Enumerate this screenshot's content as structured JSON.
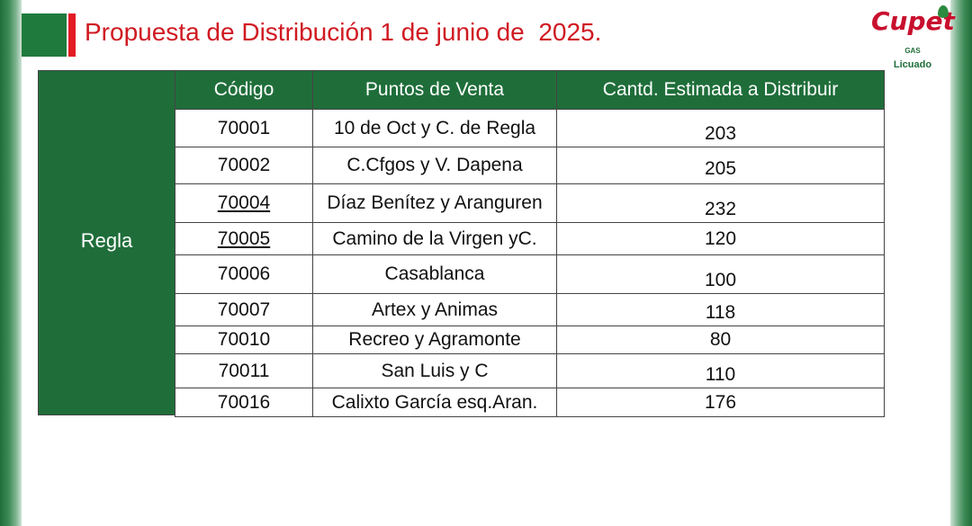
{
  "title": "Propuesta de Distribución 1 de junio de  2025.",
  "logo": {
    "word": "Cupet",
    "line1": "GAS",
    "line2": "Licuado"
  },
  "table": {
    "group_label": "Regla",
    "headers": {
      "code": "Código",
      "point": "Puntos de Venta",
      "qty": "Cantd. Estimada a Distribuir"
    },
    "rows": [
      {
        "code": "70001",
        "point": "10 de Oct y C. de Regla",
        "qty": "203"
      },
      {
        "code": "70002",
        "point": "C.Cfgos y V. Dapena",
        "qty": "205"
      },
      {
        "code": "70004",
        "point": "Díaz Benítez y Aranguren",
        "qty": "232"
      },
      {
        "code": "70005",
        "point": "Camino de la Virgen yC.",
        "qty": "120"
      },
      {
        "code": "70006",
        "point": "Casablanca",
        "qty": "100"
      },
      {
        "code": "70007",
        "point": "Artex y Animas",
        "qty": "118"
      },
      {
        "code": "70010",
        "point": "Recreo y Agramonte",
        "qty": "80"
      },
      {
        "code": "70011",
        "point": "San Luis y C",
        "qty": "110"
      },
      {
        "code": "70016",
        "point": "Calixto García esq.Aran.",
        "qty": "176"
      }
    ]
  },
  "colors": {
    "brand_green": "#1f6e3a",
    "title_red": "#d01a22",
    "accent_red": "#e31b23"
  }
}
